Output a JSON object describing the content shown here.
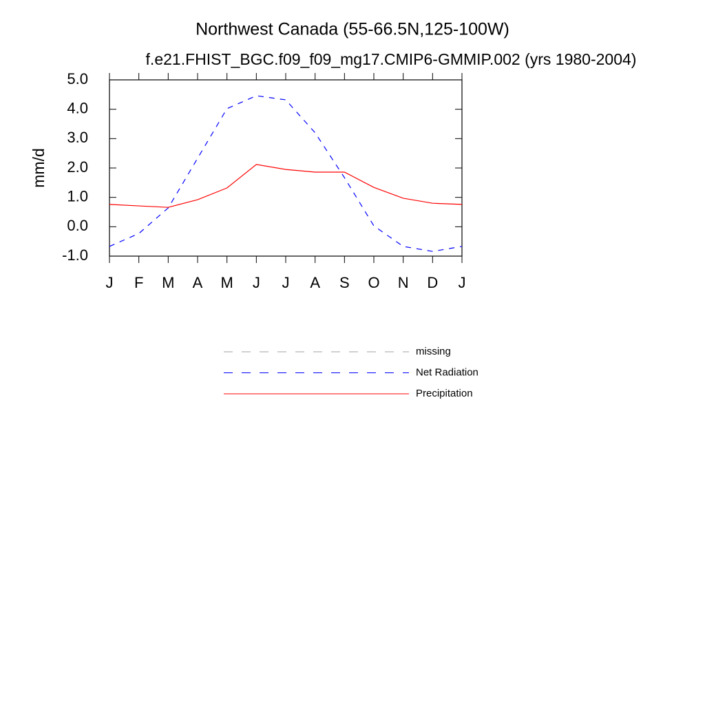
{
  "chart_data": {
    "type": "line",
    "title": "Northwest Canada (55-66.5N,125-100W)",
    "subtitle": "f.e21.FHIST_BGC.f09_f09_mg17.CMIP6-GMMIP.002 (yrs 1980-2004)",
    "y_label": "mm/d",
    "categories": [
      "J",
      "F",
      "M",
      "A",
      "M",
      "J",
      "J",
      "A",
      "S",
      "O",
      "N",
      "D",
      "J"
    ],
    "series": [
      {
        "name": "missing",
        "color": "#a0a0a0",
        "dashed": true,
        "values": [
          null,
          null,
          null,
          null,
          null,
          null,
          null,
          null,
          null,
          null,
          null,
          null,
          null
        ]
      },
      {
        "name": "Net Radiation",
        "color": "#0000ff",
        "dashed": true,
        "values": [
          -0.67,
          -0.23,
          0.64,
          2.33,
          4.02,
          4.46,
          4.32,
          3.2,
          1.67,
          0.03,
          -0.67,
          -0.84,
          -0.67
        ]
      },
      {
        "name": "Precipitation",
        "color": "#ff0000",
        "dashed": false,
        "values": [
          0.76,
          0.71,
          0.66,
          0.92,
          1.32,
          2.12,
          1.95,
          1.86,
          1.86,
          1.34,
          0.97,
          0.8,
          0.76
        ]
      }
    ],
    "ylim": [
      -1,
      5
    ],
    "yticks": [
      {
        "value": -1,
        "label": "-1.0"
      },
      {
        "value": 0,
        "label": "0.0"
      },
      {
        "value": 1,
        "label": "1.0"
      },
      {
        "value": 2,
        "label": "2.0"
      },
      {
        "value": 3,
        "label": "3.0"
      },
      {
        "value": 4,
        "label": "4.0"
      },
      {
        "value": 5,
        "label": "5.0"
      }
    ],
    "grid": false
  }
}
